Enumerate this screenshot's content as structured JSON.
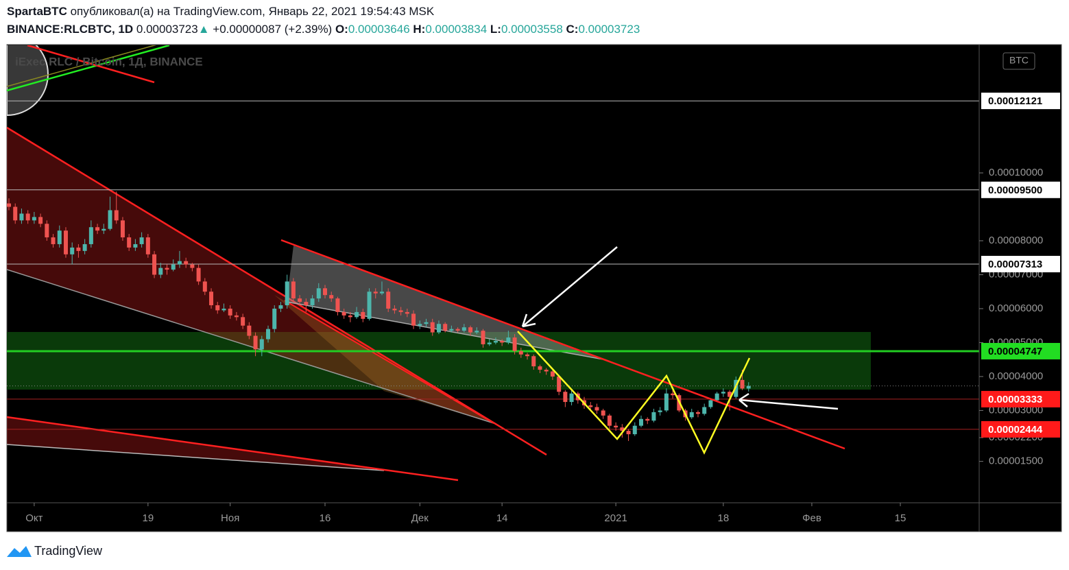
{
  "header": {
    "author": "SpartaBTC",
    "published": "опубликовал(а) на TradingView.com, Январь 22, 2021 19:54:43 MSK",
    "symbol": "BINANCE:RLCBTC, 1D",
    "last": "0.00003723",
    "arrow": "▲",
    "change": "+0.00000087 (+2.39%)",
    "o_label": "O:",
    "o": "0.00003646",
    "h_label": "H:",
    "h": "0.00003834",
    "l_label": "L:",
    "l": "0.00003558",
    "c_label": "C:",
    "c": "0.00003723"
  },
  "chart": {
    "type": "candlestick",
    "legend": "iExec RLC / Bitcoin, 1Д, BINANCE",
    "currency": "BTC",
    "up_color": "#4db6ac",
    "down_color": "#ef5350",
    "ylim": [
      2.8e-06,
      0.0001376
    ],
    "yticks": [
      {
        "value": 1.5e-05,
        "label": "0.00001500"
      },
      {
        "value": 2.2e-05,
        "label": "0.00002200"
      },
      {
        "value": 3e-05,
        "label": "0.00003000"
      },
      {
        "value": 4e-05,
        "label": "0.00004000"
      },
      {
        "value": 5e-05,
        "label": "0.00005000"
      },
      {
        "value": 6e-05,
        "label": "0.00006000"
      },
      {
        "value": 7e-05,
        "label": "0.00007000"
      },
      {
        "value": 8e-05,
        "label": "0.00008000"
      },
      {
        "value": 0.0001,
        "label": "0.00010000"
      }
    ],
    "xticks": [
      {
        "value": 4,
        "label": "Окт"
      },
      {
        "value": 22,
        "label": "19"
      },
      {
        "value": 35,
        "label": "Ноя"
      },
      {
        "value": 50,
        "label": "16"
      },
      {
        "value": 65,
        "label": "Дек"
      },
      {
        "value": 78,
        "label": "14"
      },
      {
        "value": 96,
        "label": "2021"
      },
      {
        "value": 113,
        "label": "18"
      },
      {
        "value": 127,
        "label": "Фев"
      },
      {
        "value": 141,
        "label": "15"
      }
    ],
    "price_lines": [
      {
        "value": 0.00012121,
        "label": "0.00012121",
        "line_color": "#bbbbbb",
        "tag_color": "#ffffff",
        "text_color": "#000000"
      },
      {
        "value": 9.5e-05,
        "label": "0.00009500",
        "line_color": "#bbbbbb",
        "tag_color": "#ffffff",
        "text_color": "#000000"
      },
      {
        "value": 7.313e-05,
        "label": "0.00007313",
        "line_color": "#bbbbbb",
        "tag_color": "#ffffff",
        "text_color": "#000000"
      },
      {
        "value": 4.747e-05,
        "label": "0.00004747",
        "line_color": "#22cc22",
        "tag_color": "#22dd22",
        "text_color": "#000000"
      },
      {
        "value": 3.333e-05,
        "label": "0.00003333",
        "line_color": "#aa2222",
        "tag_color": "#ff1a1a",
        "text_color": "#ffffff"
      },
      {
        "value": 2.444e-05,
        "label": "0.00002444",
        "line_color": "#aa2222",
        "tag_color": "#ff1a1a",
        "text_color": "#ffffff"
      }
    ],
    "candles": [
      [
        9.1e-05,
        9.25e-05,
        8.9e-05,
        9e-05
      ],
      [
        9e-05,
        9.1e-05,
        8.5e-05,
        8.6e-05
      ],
      [
        8.6e-05,
        8.95e-05,
        8.5e-05,
        8.8e-05
      ],
      [
        8.8e-05,
        8.9e-05,
        8.5e-05,
        8.6e-05
      ],
      [
        8.6e-05,
        8.85e-05,
        8.5e-05,
        8.7e-05
      ],
      [
        8.7e-05,
        8.8e-05,
        8.4e-05,
        8.5e-05
      ],
      [
        8.5e-05,
        8.6e-05,
        8e-05,
        8.1e-05
      ],
      [
        8.1e-05,
        8.2e-05,
        7.8e-05,
        7.9e-05
      ],
      [
        7.9e-05,
        8.45e-05,
        7.8e-05,
        8.3e-05
      ],
      [
        8.3e-05,
        8.4e-05,
        7.5e-05,
        7.6e-05
      ],
      [
        7.6e-05,
        7.95e-05,
        7.3e-05,
        7.8e-05
      ],
      [
        7.8e-05,
        7.9e-05,
        7.5e-05,
        7.7e-05
      ],
      [
        7.7e-05,
        8.05e-05,
        7.6e-05,
        7.9e-05
      ],
      [
        7.9e-05,
        8.6e-05,
        7.8e-05,
        8.4e-05
      ],
      [
        8.4e-05,
        8.5e-05,
        8.2e-05,
        8.3e-05
      ],
      [
        8.3e-05,
        8.5e-05,
        8.2e-05,
        8.35e-05
      ],
      [
        8.35e-05,
        9.3e-05,
        8.3e-05,
        8.9e-05
      ],
      [
        8.9e-05,
        9.45e-05,
        8.5e-05,
        8.6e-05
      ],
      [
        8.6e-05,
        8.7e-05,
        8e-05,
        8.1e-05
      ],
      [
        8.1e-05,
        8.2e-05,
        7.7e-05,
        7.8e-05
      ],
      [
        7.8e-05,
        8.05e-05,
        7.7e-05,
        7.9e-05
      ],
      [
        7.9e-05,
        8.25e-05,
        7.8e-05,
        8.1e-05
      ],
      [
        8.1e-05,
        8.2e-05,
        7.5e-05,
        7.6e-05
      ],
      [
        7.6e-05,
        7.7e-05,
        6.9e-05,
        7e-05
      ],
      [
        7e-05,
        7.35e-05,
        6.9e-05,
        7.2e-05
      ],
      [
        7.2e-05,
        7.3e-05,
        7e-05,
        7.15e-05
      ],
      [
        7.15e-05,
        7.45e-05,
        7.1e-05,
        7.3e-05
      ],
      [
        7.3e-05,
        7.7e-05,
        7.2e-05,
        7.4e-05
      ],
      [
        7.4e-05,
        7.5e-05,
        7.2e-05,
        7.3e-05
      ],
      [
        7.3e-05,
        7.35e-05,
        7.1e-05,
        7.2e-05
      ],
      [
        7.2e-05,
        7.3e-05,
        6.7e-05,
        6.8e-05
      ],
      [
        6.8e-05,
        6.9e-05,
        6.4e-05,
        6.5e-05
      ],
      [
        6.5e-05,
        6.6e-05,
        6e-05,
        6.1e-05
      ],
      [
        6.1e-05,
        6.2e-05,
        5.85e-05,
        5.95e-05
      ],
      [
        5.95e-05,
        6.15e-05,
        5.9e-05,
        6e-05
      ],
      [
        6e-05,
        6.1e-05,
        5.7e-05,
        5.8e-05
      ],
      [
        5.8e-05,
        5.9e-05,
        5.65e-05,
        5.75e-05
      ],
      [
        5.75e-05,
        5.85e-05,
        5.4e-05,
        5.5e-05
      ],
      [
        5.5e-05,
        5.6e-05,
        5.1e-05,
        5.2e-05
      ],
      [
        5.2e-05,
        5.3e-05,
        4.6e-05,
        4.8e-05
      ],
      [
        4.8e-05,
        5.2e-05,
        4.6e-05,
        5.1e-05
      ],
      [
        5.1e-05,
        5.5e-05,
        5e-05,
        5.4e-05
      ],
      [
        5.4e-05,
        6.1e-05,
        5.3e-05,
        6e-05
      ],
      [
        6e-05,
        6.2e-05,
        5.9e-05,
        6.1e-05
      ],
      [
        6.1e-05,
        7e-05,
        6e-05,
        6.8e-05
      ],
      [
        6.8e-05,
        6.9e-05,
        6.2e-05,
        6.3e-05
      ],
      [
        6.3e-05,
        6.4e-05,
        6.1e-05,
        6.2e-05
      ],
      [
        6.2e-05,
        6.3e-05,
        5.9e-05,
        6.1e-05
      ],
      [
        6.1e-05,
        6.4e-05,
        6e-05,
        6.3e-05
      ],
      [
        6.3e-05,
        6.75e-05,
        6.2e-05,
        6.6e-05
      ],
      [
        6.6e-05,
        6.7e-05,
        6.3e-05,
        6.4e-05
      ],
      [
        6.4e-05,
        6.5e-05,
        6.2e-05,
        6.3e-05
      ],
      [
        6.3e-05,
        6.35e-05,
        5.8e-05,
        5.9e-05
      ],
      [
        5.9e-05,
        6e-05,
        5.7e-05,
        5.8e-05
      ],
      [
        5.8e-05,
        5.9e-05,
        5.6e-05,
        5.75e-05
      ],
      [
        5.75e-05,
        6.05e-05,
        5.7e-05,
        5.9e-05
      ],
      [
        5.9e-05,
        6e-05,
        5.6e-05,
        5.7e-05
      ],
      [
        5.7e-05,
        6.6e-05,
        5.65e-05,
        6.5e-05
      ],
      [
        6.5e-05,
        6.6e-05,
        6.3e-05,
        6.45e-05
      ],
      [
        6.45e-05,
        6.8e-05,
        6.4e-05,
        6.5e-05
      ],
      [
        6.5e-05,
        6.6e-05,
        5.9e-05,
        6e-05
      ],
      [
        6e-05,
        6.1e-05,
        5.85e-05,
        5.95e-05
      ],
      [
        5.95e-05,
        6.05e-05,
        5.8e-05,
        5.9e-05
      ],
      [
        5.9e-05,
        6e-05,
        5.75e-05,
        5.85e-05
      ],
      [
        5.85e-05,
        5.95e-05,
        5.4e-05,
        5.5e-05
      ],
      [
        5.5e-05,
        5.65e-05,
        5.4e-05,
        5.55e-05
      ],
      [
        5.55e-05,
        5.7e-05,
        5.45e-05,
        5.6e-05
      ],
      [
        5.6e-05,
        5.7e-05,
        5.2e-05,
        5.3e-05
      ],
      [
        5.3e-05,
        5.65e-05,
        5.25e-05,
        5.55e-05
      ],
      [
        5.55e-05,
        5.6e-05,
        5.3e-05,
        5.35e-05
      ],
      [
        5.35e-05,
        5.5e-05,
        5.3e-05,
        5.4e-05
      ],
      [
        5.4e-05,
        5.45e-05,
        5.3e-05,
        5.35e-05
      ],
      [
        5.35e-05,
        5.55e-05,
        5.3e-05,
        5.45e-05
      ],
      [
        5.45e-05,
        5.5e-05,
        5.2e-05,
        5.3e-05
      ],
      [
        5.3e-05,
        5.45e-05,
        5.25e-05,
        5.35e-05
      ],
      [
        5.35e-05,
        5.4e-05,
        4.85e-05,
        4.95e-05
      ],
      [
        4.95e-05,
        5.1e-05,
        4.9e-05,
        5e-05
      ],
      [
        5e-05,
        5.15e-05,
        4.95e-05,
        5.05e-05
      ],
      [
        5.05e-05,
        5.1e-05,
        4.9e-05,
        5e-05
      ],
      [
        5e-05,
        5.35e-05,
        4.95e-05,
        5.15e-05
      ],
      [
        5.15e-05,
        5.25e-05,
        4.65e-05,
        4.75e-05
      ],
      [
        4.75e-05,
        4.85e-05,
        4.55e-05,
        4.65e-05
      ],
      [
        4.65e-05,
        4.7e-05,
        4.5e-05,
        4.6e-05
      ],
      [
        4.6e-05,
        4.65e-05,
        4.2e-05,
        4.3e-05
      ],
      [
        4.3e-05,
        4.35e-05,
        4.1e-05,
        4.2e-05
      ],
      [
        4.2e-05,
        4.25e-05,
        4.05e-05,
        4.15e-05
      ],
      [
        4.15e-05,
        4.2e-05,
        3.9e-05,
        4e-05
      ],
      [
        4e-05,
        4.05e-05,
        3.45e-05,
        3.55e-05
      ],
      [
        3.55e-05,
        3.6e-05,
        3.1e-05,
        3.25e-05
      ],
      [
        3.25e-05,
        3.6e-05,
        3.15e-05,
        3.5e-05
      ],
      [
        3.5e-05,
        3.55e-05,
        3.2e-05,
        3.3e-05
      ],
      [
        3.3e-05,
        3.4e-05,
        3.05e-05,
        3.15e-05
      ],
      [
        3.15e-05,
        3.25e-05,
        3e-05,
        3.1e-05
      ],
      [
        3.1e-05,
        3.2e-05,
        2.9e-05,
        3e-05
      ],
      [
        3e-05,
        3.05e-05,
        2.75e-05,
        2.85e-05
      ],
      [
        2.85e-05,
        2.9e-05,
        2.45e-05,
        2.55e-05
      ],
      [
        2.55e-05,
        2.65e-05,
        2.4e-05,
        2.5e-05
      ],
      [
        2.5e-05,
        2.6e-05,
        2.2e-05,
        2.4e-05
      ],
      [
        2.4e-05,
        2.45e-05,
        2.1e-05,
        2.3e-05
      ],
      [
        2.3e-05,
        2.65e-05,
        2.25e-05,
        2.55e-05
      ],
      [
        2.55e-05,
        2.85e-05,
        2.5e-05,
        2.75e-05
      ],
      [
        2.75e-05,
        2.8e-05,
        2.6e-05,
        2.7e-05
      ],
      [
        2.7e-05,
        3.05e-05,
        2.65e-05,
        2.95e-05
      ],
      [
        2.95e-05,
        3.1e-05,
        2.85e-05,
        3e-05
      ],
      [
        3e-05,
        3.65e-05,
        2.95e-05,
        3.5e-05
      ],
      [
        3.5e-05,
        3.6e-05,
        3.35e-05,
        3.45e-05
      ],
      [
        3.45e-05,
        3.5e-05,
        2.95e-05,
        3e-05
      ],
      [
        3e-05,
        3.05e-05,
        2.7e-05,
        2.8e-05
      ],
      [
        2.8e-05,
        3.05e-05,
        2.75e-05,
        2.95e-05
      ],
      [
        2.95e-05,
        3e-05,
        2.8e-05,
        2.9e-05
      ],
      [
        2.9e-05,
        3.2e-05,
        2.85e-05,
        3.1e-05
      ],
      [
        3.1e-05,
        3.35e-05,
        3.05e-05,
        3.3e-05
      ],
      [
        3.3e-05,
        3.55e-05,
        3.25e-05,
        3.5e-05
      ],
      [
        3.5e-05,
        3.65e-05,
        3.4e-05,
        3.55e-05
      ],
      [
        3.55e-05,
        3.6e-05,
        3e-05,
        3.4e-05
      ],
      [
        3.4e-05,
        4e-05,
        3.35e-05,
        3.9e-05
      ],
      [
        3.9e-05,
        4.2e-05,
        3.6e-05,
        3.646e-05
      ],
      [
        3.646e-05,
        3.834e-05,
        3.558e-05,
        3.723e-05
      ]
    ]
  },
  "footer": {
    "brand": "TradingView"
  }
}
